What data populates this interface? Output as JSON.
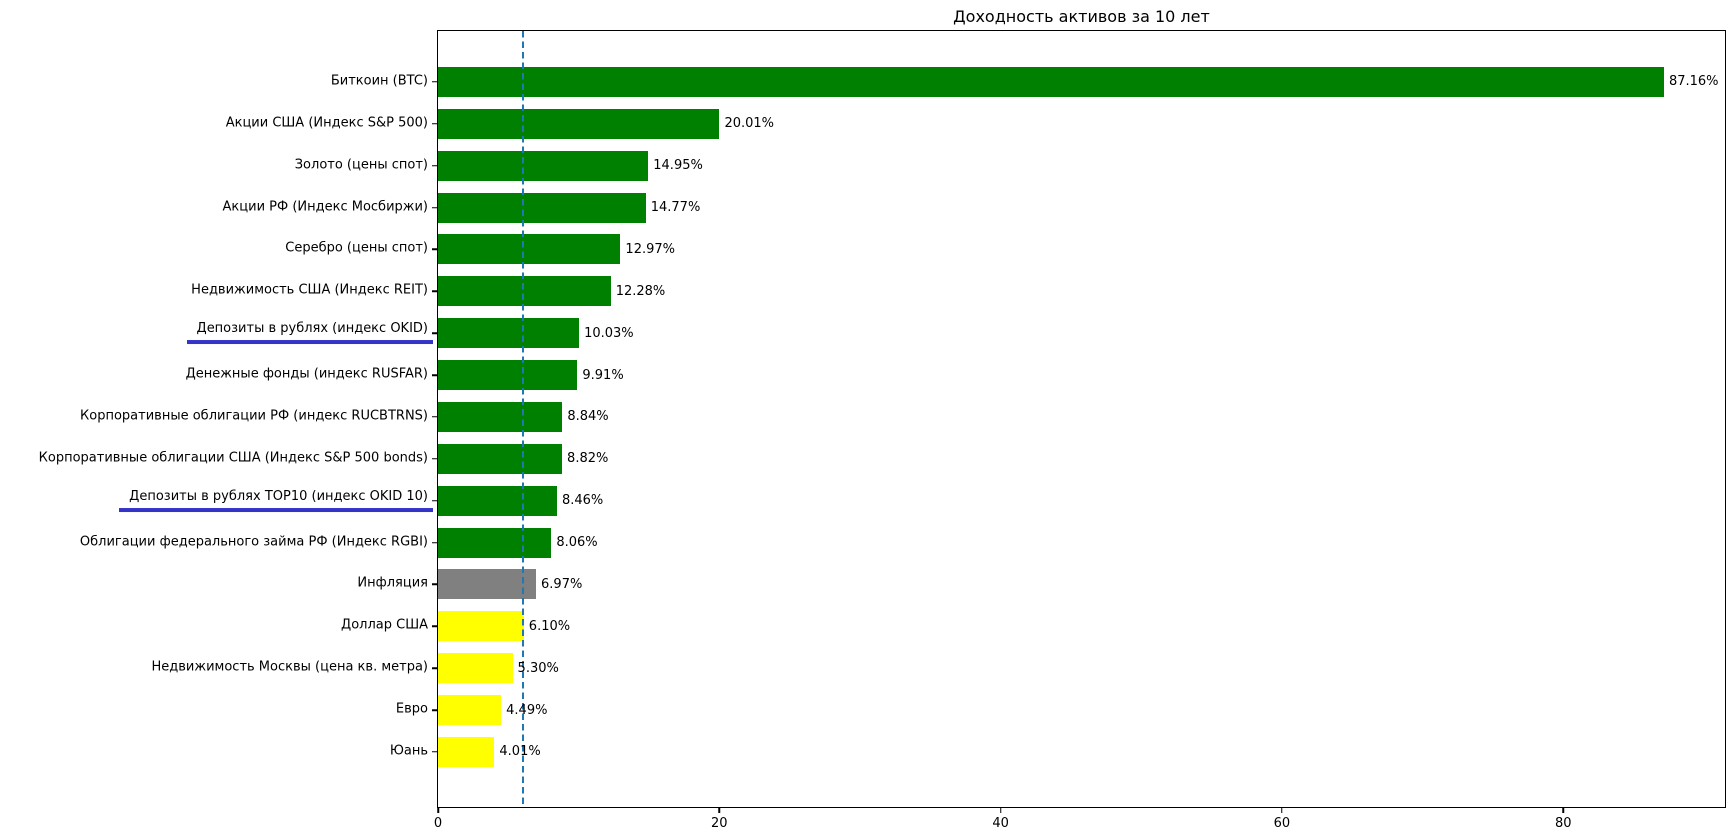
{
  "chart_data": {
    "type": "bar",
    "orientation": "horizontal",
    "title": "Доходность активов за 10 лет",
    "categories": [
      "Биткоин (BTC)",
      "Акции США (Индекс S&P 500)",
      "Золото (цены спот)",
      "Акции РФ (Индекс Мосбиржи)",
      "Серебро (цены спот)",
      "Недвижимость США (Индекс REIT)",
      "Депозиты в рублях (индекс OKID)",
      "Денежные фонды (индекс RUSFAR)",
      "Корпоративные облигации РФ (индекс RUCBTRNS)",
      "Корпоративные облигации США (Индекс S&P 500 bonds)",
      "Депозиты в рублях TOP10 (индекс OKID 10)",
      "Облигации федерального займа РФ (Индекс RGBI)",
      "Инфляция",
      "Доллар США",
      "Недвижимость Москвы (цена кв. метра)",
      "Евро",
      "Юань"
    ],
    "values": [
      87.16,
      20.01,
      14.95,
      14.77,
      12.97,
      12.28,
      10.03,
      9.91,
      8.84,
      8.82,
      8.46,
      8.06,
      6.97,
      6.1,
      5.3,
      4.49,
      4.01
    ],
    "value_labels": [
      "87.16%",
      "20.01%",
      "14.95%",
      "14.77%",
      "12.97%",
      "12.28%",
      "10.03%",
      "9.91%",
      "8.84%",
      "8.82%",
      "8.46%",
      "8.06%",
      "6.97%",
      "6.10%",
      "5.30%",
      "4.49%",
      "4.01%"
    ],
    "bar_colors": [
      "#008000",
      "#008000",
      "#008000",
      "#008000",
      "#008000",
      "#008000",
      "#008000",
      "#008000",
      "#008000",
      "#008000",
      "#008000",
      "#008000",
      "#808080",
      "#ffff00",
      "#ffff00",
      "#ffff00",
      "#ffff00"
    ],
    "underlined_indices": [
      6,
      10
    ],
    "underline_color": "#3434c8",
    "underline_thickness_px": 4,
    "x_ticks": [
      0,
      20,
      40,
      60,
      80
    ],
    "x_tick_labels": [
      "0",
      "20",
      "40",
      "60",
      "80"
    ],
    "xlim": [
      0,
      91.5
    ],
    "reference_line": {
      "x": 6.0,
      "color": "#1f77b4",
      "style": "dashed"
    },
    "grid": false,
    "legend": false,
    "colors": {
      "positive_asset": "#008000",
      "inflation": "#808080",
      "below_inflation": "#ffff00",
      "axes": "#000000",
      "background": "#ffffff"
    }
  }
}
